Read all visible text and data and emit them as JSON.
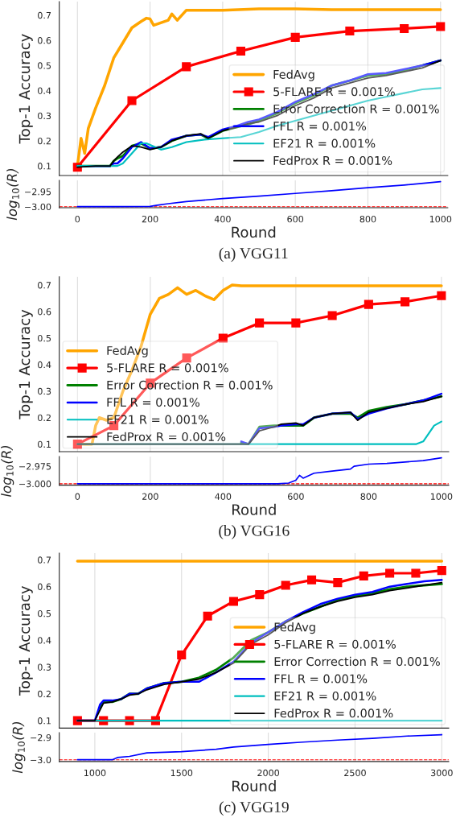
{
  "chart_data": [
    {
      "type": "line",
      "ylabel": "Top-1 Accuracy",
      "xlim": [
        -50,
        1020
      ],
      "xticks": [
        0,
        200,
        400,
        600,
        800,
        1000
      ],
      "ylim": [
        0.062,
        0.754
      ],
      "yticks": [
        0.1,
        0.2,
        0.3,
        0.4,
        0.5,
        0.6,
        0.7
      ],
      "tick_labels": "y",
      "grid": "x",
      "legend": "lower right",
      "series": [
        {
          "name": "FedAvg",
          "color": "#ffa500",
          "x": [
            0,
            10,
            20,
            30,
            50,
            75,
            100,
            125,
            150,
            175,
            190,
            200,
            210,
            250,
            260,
            275,
            300,
            350,
            400,
            500,
            600,
            700,
            800,
            900,
            1000
          ],
          "values": [
            0.1,
            0.21,
            0.15,
            0.25,
            0.33,
            0.42,
            0.53,
            0.59,
            0.65,
            0.675,
            0.688,
            0.685,
            0.66,
            0.68,
            0.705,
            0.68,
            0.72,
            0.72,
            0.72,
            0.725,
            0.725,
            0.722,
            0.722,
            0.722,
            0.722
          ]
        },
        {
          "name": "5-FLARE R = 0.001%",
          "color": "#ff0000",
          "marker": "square",
          "x": [
            0,
            150,
            300,
            450,
            600,
            750,
            900,
            1000
          ],
          "values": [
            0.095,
            0.36,
            0.495,
            0.557,
            0.612,
            0.637,
            0.647,
            0.655
          ]
        },
        {
          "name": "Error Correction R = 0.001%",
          "color": "#008000",
          "x": [
            0,
            50,
            90,
            100,
            110,
            125,
            150,
            175,
            200,
            230,
            260,
            300,
            340,
            360,
            400,
            440,
            470,
            500,
            550,
            600,
            650,
            700,
            750,
            800,
            850,
            900,
            950,
            1000
          ],
          "values": [
            0.1,
            0.1,
            0.1,
            0.12,
            0.13,
            0.14,
            0.18,
            0.19,
            0.17,
            0.175,
            0.2,
            0.22,
            0.225,
            0.21,
            0.24,
            0.255,
            0.265,
            0.28,
            0.31,
            0.35,
            0.38,
            0.42,
            0.44,
            0.46,
            0.465,
            0.48,
            0.5,
            0.52
          ]
        },
        {
          "name": "FFL R = 0.001%",
          "color": "#0000ff",
          "x": [
            0,
            50,
            90,
            100,
            110,
            125,
            150,
            175,
            200,
            230,
            260,
            300,
            340,
            360,
            400,
            440,
            470,
            500,
            550,
            600,
            650,
            700,
            750,
            800,
            850,
            900,
            950,
            1000
          ],
          "values": [
            0.1,
            0.1,
            0.1,
            0.11,
            0.11,
            0.13,
            0.175,
            0.195,
            0.17,
            0.175,
            0.205,
            0.22,
            0.225,
            0.215,
            0.245,
            0.26,
            0.275,
            0.285,
            0.315,
            0.355,
            0.385,
            0.42,
            0.44,
            0.465,
            0.47,
            0.485,
            0.5,
            0.52
          ]
        },
        {
          "name": "EF21 R = 0.001%",
          "color": "#00bfbf",
          "x": [
            0,
            50,
            100,
            110,
            125,
            150,
            175,
            190,
            230,
            260,
            300,
            350,
            400,
            450,
            500,
            550,
            600,
            650,
            700,
            750,
            800,
            850,
            900,
            950,
            1000
          ],
          "values": [
            0.1,
            0.1,
            0.1,
            0.1,
            0.11,
            0.15,
            0.19,
            0.19,
            0.165,
            0.175,
            0.195,
            0.205,
            0.21,
            0.215,
            0.235,
            0.26,
            0.28,
            0.3,
            0.32,
            0.34,
            0.36,
            0.375,
            0.39,
            0.405,
            0.41
          ]
        },
        {
          "name": "FedProx R = 0.001%",
          "color": "#000000",
          "x": [
            0,
            50,
            90,
            100,
            110,
            125,
            150,
            175,
            200,
            230,
            260,
            300,
            340,
            360,
            400,
            440,
            470,
            500,
            550,
            600,
            650,
            700,
            750,
            800,
            850,
            900,
            950,
            1000
          ],
          "values": [
            0.095,
            0.1,
            0.1,
            0.12,
            0.135,
            0.155,
            0.18,
            0.175,
            0.165,
            0.175,
            0.2,
            0.22,
            0.228,
            0.21,
            0.24,
            0.255,
            0.268,
            0.275,
            0.3,
            0.34,
            0.37,
            0.41,
            0.43,
            0.45,
            0.46,
            0.475,
            0.49,
            0.52
          ]
        }
      ]
    },
    {
      "type": "line",
      "xlabel": "Round",
      "ylabel": "log$_{10}$(R)",
      "xlim": [
        -50,
        1020
      ],
      "xticks": [
        0,
        200,
        400,
        600,
        800,
        1000
      ],
      "ylim": [
        -3.0035,
        -2.9125
      ],
      "yticks": [
        {
          "value": -3.0,
          "label": "−3.00"
        },
        {
          "value": -2.95,
          "label": "−2.95"
        }
      ],
      "grid": "x",
      "annotations": [
        "(a) VGG11"
      ],
      "ref_lines": [
        {
          "axis": "y",
          "value": -3.0,
          "color": "#ff0000",
          "line_style": "dashed"
        }
      ],
      "series": [
        {
          "color": "#0000ff",
          "x": [
            0,
            100,
            200,
            220,
            250,
            300,
            400,
            500,
            600,
            700,
            800,
            900,
            1000
          ],
          "values": [
            -3.0,
            -3.0,
            -2.999,
            -2.995,
            -2.99,
            -2.983,
            -2.973,
            -2.965,
            -2.956,
            -2.947,
            -2.937,
            -2.928,
            -2.917
          ]
        }
      ]
    },
    {
      "type": "line",
      "ylabel": "Top-1 Accuracy",
      "xlim": [
        -50,
        1020
      ],
      "xticks": [
        0,
        200,
        400,
        600,
        800,
        1000
      ],
      "ylim": [
        0.0715,
        0.731
      ],
      "yticks": [
        0.1,
        0.2,
        0.3,
        0.4,
        0.5,
        0.6,
        0.7
      ],
      "tick_labels": "y",
      "grid": "x",
      "legend": "lower left",
      "series": [
        {
          "name": "FedAvg",
          "color": "#ffa500",
          "x": [
            0,
            40,
            50,
            60,
            80,
            100,
            125,
            150,
            175,
            200,
            225,
            250,
            275,
            300,
            325,
            350,
            375,
            400,
            425,
            450,
            500,
            600,
            700,
            800,
            900,
            1000
          ],
          "values": [
            0.1,
            0.1,
            0.17,
            0.2,
            0.19,
            0.2,
            0.3,
            0.38,
            0.47,
            0.59,
            0.65,
            0.665,
            0.69,
            0.665,
            0.68,
            0.66,
            0.645,
            0.68,
            0.7,
            0.697,
            0.697,
            0.697,
            0.697,
            0.697,
            0.697,
            0.697
          ]
        },
        {
          "name": "5-FLARE R = 0.001%",
          "color": "#ff0000",
          "marker": "square",
          "x": [
            0,
            100,
            200,
            300,
            400,
            500,
            600,
            700,
            800,
            900,
            1000
          ],
          "values": [
            0.1,
            0.17,
            0.33,
            0.425,
            0.5,
            0.557,
            0.557,
            0.585,
            0.627,
            0.637,
            0.66
          ]
        },
        {
          "name": "Error Correction R = 0.001%",
          "color": "#008000",
          "x": [
            450,
            470,
            500,
            540,
            560,
            600,
            620,
            650,
            700,
            750,
            770,
            800,
            850,
            900,
            950,
            1000
          ],
          "values": [
            0.105,
            0.1,
            0.165,
            0.17,
            0.17,
            0.17,
            0.17,
            0.2,
            0.215,
            0.215,
            0.2,
            0.225,
            0.24,
            0.25,
            0.265,
            0.28
          ]
        },
        {
          "name": "FFL R = 0.001%",
          "color": "#0000ff",
          "x": [
            450,
            470,
            500,
            540,
            560,
            600,
            620,
            650,
            700,
            750,
            770,
            800,
            850,
            900,
            950,
            1000
          ],
          "values": [
            0.11,
            0.1,
            0.16,
            0.165,
            0.17,
            0.175,
            0.175,
            0.2,
            0.215,
            0.22,
            0.195,
            0.215,
            0.235,
            0.25,
            0.265,
            0.29
          ]
        },
        {
          "name": "EF21 R = 0.001%",
          "color": "#00bfbf",
          "x": [
            0,
            500,
            930,
            950,
            980,
            1000
          ],
          "values": [
            0.1,
            0.1,
            0.1,
            0.11,
            0.17,
            0.185
          ]
        },
        {
          "name": "FedProx R = 0.001%",
          "color": "#000000",
          "x": [
            0,
            100,
            200,
            300,
            400,
            430,
            450,
            470,
            500,
            540,
            560,
            600,
            620,
            650,
            700,
            750,
            770,
            800,
            850,
            900,
            950,
            1000
          ],
          "values": [
            0.1,
            0.1,
            0.1,
            0.1,
            0.1,
            0.1,
            0.1,
            0.1,
            0.15,
            0.165,
            0.175,
            0.18,
            0.17,
            0.2,
            0.215,
            0.22,
            0.19,
            0.22,
            0.235,
            0.25,
            0.26,
            0.28
          ]
        }
      ]
    },
    {
      "type": "line",
      "xlabel": "Round",
      "ylabel": "log$_{10}$(R)",
      "xlim": [
        -50,
        1020
      ],
      "xticks": [
        0,
        200,
        400,
        600,
        800,
        1000
      ],
      "ylim": [
        -3.002,
        -2.9613
      ],
      "yticks": [
        {
          "value": -3.0,
          "label": "−3.000"
        },
        {
          "value": -2.975,
          "label": "−2.975"
        }
      ],
      "grid": "x",
      "annotations": [
        "(b) VGG16"
      ],
      "ref_lines": [
        {
          "axis": "y",
          "value": -3.0,
          "color": "#ff0000",
          "line_style": "dashed"
        }
      ],
      "series": [
        {
          "color": "#0000ff",
          "x": [
            0,
            200,
            400,
            550,
            580,
            600,
            610,
            620,
            650,
            700,
            750,
            760,
            800,
            850,
            900,
            950,
            1000
          ],
          "values": [
            -3.0,
            -3.0,
            -3.0,
            -3.0,
            -2.999,
            -2.995,
            -2.988,
            -2.992,
            -2.985,
            -2.982,
            -2.979,
            -2.975,
            -2.972,
            -2.971,
            -2.969,
            -2.967,
            -2.963
          ]
        }
      ]
    },
    {
      "type": "line",
      "ylabel": "Top-1 Accuracy",
      "xlim": [
        795,
        3040
      ],
      "xticks": [
        1000,
        1500,
        2000,
        2500,
        3000
      ],
      "ylim": [
        0.072,
        0.725
      ],
      "yticks": [
        0.1,
        0.2,
        0.3,
        0.4,
        0.5,
        0.6,
        0.7
      ],
      "tick_labels": "y",
      "grid": "x",
      "legend": "lower right",
      "series": [
        {
          "name": "FedAvg",
          "color": "#ffa500",
          "x": [
            900,
            1500,
            2000,
            2500,
            3000
          ],
          "values": [
            0.695,
            0.695,
            0.695,
            0.695,
            0.695
          ]
        },
        {
          "name": "5-FLARE R = 0.001%",
          "color": "#ff0000",
          "marker": "square",
          "x": [
            900,
            1050,
            1200,
            1350,
            1500,
            1650,
            1800,
            1950,
            2100,
            2250,
            2400,
            2550,
            2700,
            2850,
            3000
          ],
          "values": [
            0.1,
            0.1,
            0.1,
            0.1,
            0.345,
            0.49,
            0.545,
            0.57,
            0.605,
            0.625,
            0.615,
            0.64,
            0.65,
            0.65,
            0.66
          ]
        },
        {
          "name": "Error Correction R = 0.001%",
          "color": "#008000",
          "x": [
            1030,
            1050,
            1100,
            1150,
            1200,
            1250,
            1300,
            1350,
            1400,
            1500,
            1600,
            1700,
            1800,
            1900,
            2000,
            2100,
            2200,
            2300,
            2400,
            2500,
            2600,
            2700,
            2800,
            2900,
            3000
          ],
          "values": [
            0.15,
            0.17,
            0.17,
            0.18,
            0.2,
            0.2,
            0.22,
            0.23,
            0.24,
            0.245,
            0.26,
            0.29,
            0.335,
            0.4,
            0.43,
            0.47,
            0.5,
            0.525,
            0.55,
            0.565,
            0.575,
            0.59,
            0.6,
            0.605,
            0.61
          ]
        },
        {
          "name": "FFL R = 0.001%",
          "color": "#0000ff",
          "x": [
            900,
            1000,
            1030,
            1050,
            1100,
            1150,
            1200,
            1250,
            1300,
            1350,
            1400,
            1500,
            1600,
            1700,
            1800,
            1900,
            2000,
            2100,
            2200,
            2300,
            2400,
            2500,
            2600,
            2700,
            2800,
            2900,
            3000
          ],
          "values": [
            0.1,
            0.1,
            0.16,
            0.175,
            0.175,
            0.18,
            0.2,
            0.2,
            0.22,
            0.23,
            0.24,
            0.245,
            0.245,
            0.28,
            0.32,
            0.39,
            0.43,
            0.47,
            0.505,
            0.535,
            0.555,
            0.57,
            0.58,
            0.6,
            0.61,
            0.62,
            0.625
          ]
        },
        {
          "name": "EF21 R = 0.001%",
          "color": "#00bfbf",
          "x": [
            900,
            3000
          ],
          "values": [
            0.1,
            0.1
          ]
        },
        {
          "name": "FedProx R = 0.001%",
          "color": "#000000",
          "x": [
            900,
            1000,
            1030,
            1050,
            1100,
            1150,
            1200,
            1250,
            1300,
            1350,
            1400,
            1500,
            1600,
            1700,
            1800,
            1900,
            2000,
            2100,
            2200,
            2300,
            2400,
            2500,
            2600,
            2700,
            2800,
            2900,
            3000
          ],
          "values": [
            0.1,
            0.1,
            0.14,
            0.165,
            0.17,
            0.18,
            0.195,
            0.2,
            0.215,
            0.225,
            0.235,
            0.245,
            0.255,
            0.28,
            0.315,
            0.385,
            0.42,
            0.465,
            0.5,
            0.525,
            0.545,
            0.56,
            0.57,
            0.585,
            0.595,
            0.605,
            0.615
          ]
        }
      ]
    },
    {
      "type": "line",
      "xlabel": "Round",
      "ylabel": "log$_{10}$(R)",
      "xlim": [
        795,
        3040
      ],
      "xticks": [
        1000,
        1500,
        2000,
        2500,
        3000
      ],
      "ylim": [
        -3.0078,
        -2.879
      ],
      "yticks": [
        {
          "value": -3.0,
          "label": "−3.0"
        },
        {
          "value": -2.9,
          "label": "−2.9"
        }
      ],
      "grid": "x",
      "annotations": [
        "(c) VGG19"
      ],
      "ref_lines": [
        {
          "axis": "y",
          "value": -3.0,
          "color": "#ff0000",
          "line_style": "dashed"
        }
      ],
      "series": [
        {
          "color": "#0000ff",
          "x": [
            900,
            1000,
            1100,
            1130,
            1200,
            1300,
            1500,
            1700,
            1800,
            2000,
            2200,
            2400,
            2600,
            2800,
            3000
          ],
          "values": [
            -3.0,
            -3.0,
            -3.0,
            -2.99,
            -2.985,
            -2.969,
            -2.964,
            -2.953,
            -2.943,
            -2.931,
            -2.921,
            -2.912,
            -2.904,
            -2.894,
            -2.888
          ]
        }
      ]
    }
  ]
}
